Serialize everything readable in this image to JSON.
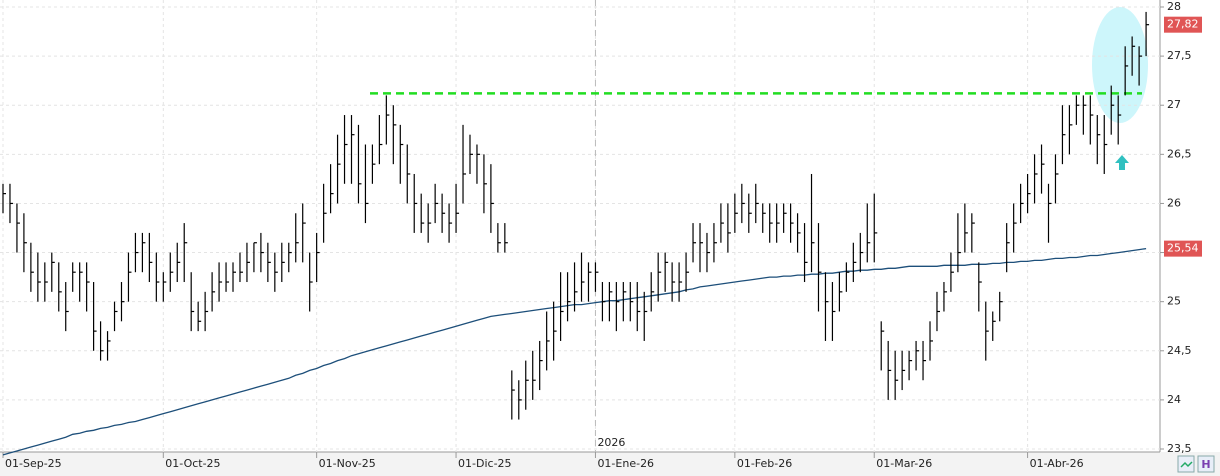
{
  "chart_data": {
    "type": "ohlc",
    "categories": [
      "01-Sep-25",
      null,
      null,
      null,
      null,
      null,
      null,
      null,
      null,
      null,
      null,
      null,
      null,
      null,
      null,
      null,
      null,
      null,
      null,
      null,
      null,
      null,
      null,
      "01-Oct-25",
      null,
      null,
      null,
      null,
      null,
      null,
      null,
      null,
      null,
      null,
      null,
      null,
      null,
      null,
      null,
      null,
      null,
      null,
      null,
      null,
      null,
      "01-Nov-25",
      null,
      null,
      null,
      null,
      null,
      null,
      null,
      null,
      null,
      null,
      null,
      null,
      null,
      null,
      null,
      null,
      null,
      null,
      null,
      "01-Dic-25",
      null,
      null,
      null,
      null,
      null,
      null,
      null,
      null,
      null,
      null,
      null,
      null,
      null,
      null,
      null,
      null,
      null,
      null,
      null,
      "01-Ene-26",
      null,
      null,
      null,
      null,
      null,
      null,
      null,
      null,
      null,
      null,
      null,
      null,
      null,
      null,
      null,
      null,
      null,
      null,
      null,
      "01-Feb-26",
      null,
      null,
      null,
      null,
      null,
      null,
      null,
      null,
      null,
      null,
      null,
      null,
      null,
      null,
      null,
      null,
      null,
      null,
      null,
      "01-Mar-26",
      null,
      null,
      null,
      null,
      null,
      null,
      null,
      null,
      null,
      null,
      null,
      null,
      null,
      null,
      null,
      null,
      null,
      null,
      null,
      null,
      null,
      "01-Abr-26",
      null,
      null,
      null,
      null,
      null,
      null,
      null,
      null,
      null,
      null,
      null,
      null,
      null,
      null,
      null,
      null,
      null
    ],
    "ohlc": {
      "color": "#000000",
      "high": [
        26.2,
        26.2,
        26.0,
        25.9,
        25.6,
        25.5,
        25.4,
        25.5,
        25.4,
        25.2,
        25.4,
        25.4,
        25.4,
        25.2,
        24.8,
        24.7,
        25.0,
        25.2,
        25.5,
        25.7,
        25.7,
        25.7,
        25.5,
        25.3,
        25.5,
        25.6,
        25.8,
        25.3,
        25.0,
        25.1,
        25.3,
        25.4,
        25.4,
        25.4,
        25.5,
        25.6,
        25.6,
        25.7,
        25.6,
        25.5,
        25.6,
        25.6,
        25.9,
        26.0,
        25.5,
        25.7,
        26.2,
        26.4,
        26.7,
        26.9,
        26.9,
        26.8,
        26.6,
        26.6,
        26.9,
        27.1,
        27.0,
        26.8,
        26.6,
        26.3,
        26.1,
        26.0,
        26.2,
        26.1,
        26.0,
        26.2,
        26.8,
        26.7,
        26.6,
        26.5,
        26.4,
        25.8,
        25.8,
        24.3,
        24.2,
        24.4,
        24.5,
        24.6,
        24.9,
        25.0,
        25.3,
        25.3,
        25.4,
        25.5,
        25.4,
        25.4,
        25.2,
        25.2,
        25.2,
        25.2,
        25.2,
        25.2,
        25.1,
        25.3,
        25.5,
        25.5,
        25.4,
        25.4,
        25.5,
        25.8,
        25.8,
        25.7,
        25.8,
        26.0,
        26.0,
        26.1,
        26.2,
        26.1,
        26.2,
        26.0,
        26.0,
        26.0,
        26.0,
        26.0,
        25.9,
        25.8,
        26.3,
        25.8,
        25.3,
        25.2,
        25.3,
        25.4,
        25.6,
        25.7,
        26.0,
        26.1,
        24.8,
        24.6,
        24.5,
        24.5,
        24.5,
        24.6,
        24.6,
        24.8,
        25.1,
        25.2,
        25.5,
        25.9,
        26.0,
        25.9,
        25.4,
        25.0,
        24.9,
        25.1,
        25.8,
        26.0,
        26.2,
        26.3,
        26.5,
        26.6,
        26.2,
        26.5,
        27.0,
        27.0,
        27.1,
        27.1,
        27.1,
        26.9,
        26.9,
        27.2,
        27.1,
        27.6,
        27.7,
        27.6,
        27.95
      ],
      "low": [
        25.9,
        25.8,
        25.5,
        25.3,
        25.1,
        25.0,
        25.0,
        25.1,
        24.9,
        24.7,
        25.1,
        25.0,
        24.9,
        24.5,
        24.4,
        24.4,
        24.7,
        24.8,
        25.0,
        25.3,
        25.3,
        25.2,
        25.0,
        25.0,
        25.1,
        25.2,
        25.2,
        24.7,
        24.7,
        24.7,
        24.9,
        25.0,
        25.1,
        25.1,
        25.2,
        25.2,
        25.3,
        25.3,
        25.2,
        25.1,
        25.2,
        25.3,
        25.4,
        25.4,
        24.9,
        25.2,
        25.6,
        25.9,
        26.0,
        26.2,
        26.2,
        26.0,
        25.8,
        26.2,
        26.4,
        26.6,
        26.4,
        26.2,
        26.0,
        25.7,
        25.7,
        25.6,
        25.8,
        25.7,
        25.6,
        25.7,
        26.0,
        26.3,
        26.2,
        25.9,
        25.7,
        25.5,
        25.5,
        23.8,
        23.8,
        23.9,
        24.0,
        24.1,
        24.3,
        24.4,
        24.6,
        24.8,
        24.9,
        25.0,
        25.0,
        25.1,
        24.8,
        24.8,
        24.7,
        24.8,
        24.8,
        24.7,
        24.6,
        24.9,
        25.0,
        25.1,
        25.0,
        25.0,
        25.1,
        25.4,
        25.3,
        25.3,
        25.4,
        25.6,
        25.5,
        25.7,
        25.8,
        25.7,
        25.8,
        25.7,
        25.6,
        25.6,
        25.7,
        25.6,
        25.5,
        25.2,
        25.3,
        24.9,
        24.6,
        24.6,
        24.9,
        25.1,
        25.2,
        25.3,
        25.4,
        25.4,
        24.3,
        24.0,
        24.0,
        24.1,
        24.2,
        24.3,
        24.2,
        24.4,
        24.7,
        24.9,
        25.1,
        25.3,
        25.5,
        25.5,
        24.9,
        24.4,
        24.6,
        24.8,
        25.3,
        25.5,
        25.8,
        25.9,
        26.0,
        26.1,
        25.6,
        26.0,
        26.4,
        26.5,
        26.8,
        26.7,
        26.6,
        26.4,
        26.3,
        26.7,
        26.6,
        27.1,
        27.3,
        27.2,
        27.5
      ],
      "close": [
        26.1,
        26.0,
        25.8,
        25.6,
        25.3,
        25.2,
        25.2,
        25.4,
        25.1,
        24.9,
        25.3,
        25.3,
        25.2,
        24.7,
        24.5,
        24.6,
        24.9,
        25.0,
        25.3,
        25.5,
        25.6,
        25.4,
        25.2,
        25.2,
        25.3,
        25.4,
        25.6,
        24.9,
        24.8,
        24.9,
        25.1,
        25.2,
        25.2,
        25.3,
        25.3,
        25.4,
        25.6,
        25.5,
        25.4,
        25.3,
        25.4,
        25.5,
        25.6,
        25.8,
        25.2,
        25.5,
        25.9,
        26.1,
        26.4,
        26.6,
        26.7,
        26.2,
        26.0,
        26.4,
        26.6,
        26.9,
        26.8,
        26.6,
        26.3,
        26.0,
        25.8,
        25.8,
        26.0,
        25.9,
        25.8,
        25.9,
        26.3,
        26.5,
        26.5,
        26.2,
        26.0,
        25.6,
        25.6,
        24.1,
        24.0,
        24.2,
        24.2,
        24.4,
        24.6,
        24.7,
        24.9,
        25.0,
        25.1,
        25.2,
        25.3,
        25.3,
        25.0,
        25.1,
        25.0,
        25.1,
        25.0,
        24.9,
        24.9,
        25.1,
        25.3,
        25.4,
        25.2,
        25.2,
        25.3,
        25.6,
        25.6,
        25.5,
        25.6,
        25.8,
        25.7,
        25.9,
        26.0,
        25.9,
        26.0,
        25.9,
        25.8,
        25.8,
        25.9,
        25.8,
        25.7,
        25.4,
        25.6,
        25.3,
        25.0,
        24.9,
        25.1,
        25.3,
        25.4,
        25.5,
        25.6,
        25.7,
        24.7,
        24.3,
        24.2,
        24.3,
        24.4,
        24.5,
        24.4,
        24.6,
        24.9,
        25.1,
        25.3,
        25.5,
        25.7,
        25.8,
        25.2,
        24.7,
        24.8,
        25.0,
        25.6,
        25.8,
        26.0,
        26.1,
        26.3,
        26.4,
        26.0,
        26.3,
        26.7,
        26.8,
        27.0,
        27.0,
        26.9,
        26.7,
        26.6,
        27.0,
        26.9,
        27.4,
        27.6,
        27.5,
        27.82
      ]
    },
    "moving_average": {
      "color": "#1d4f7a",
      "values": [
        23.44,
        23.46,
        23.48,
        23.5,
        23.52,
        23.54,
        23.56,
        23.58,
        23.6,
        23.62,
        23.65,
        23.66,
        23.68,
        23.69,
        23.71,
        23.72,
        23.74,
        23.75,
        23.77,
        23.78,
        23.8,
        23.82,
        23.84,
        23.86,
        23.88,
        23.9,
        23.92,
        23.94,
        23.96,
        23.98,
        24.0,
        24.02,
        24.04,
        24.06,
        24.08,
        24.1,
        24.12,
        24.14,
        24.16,
        24.18,
        24.2,
        24.22,
        24.25,
        24.27,
        24.3,
        24.32,
        24.35,
        24.37,
        24.4,
        24.42,
        24.45,
        24.47,
        24.49,
        24.51,
        24.53,
        24.55,
        24.57,
        24.59,
        24.61,
        24.63,
        24.65,
        24.67,
        24.69,
        24.71,
        24.73,
        24.75,
        24.77,
        24.79,
        24.81,
        24.83,
        24.85,
        24.86,
        24.87,
        24.88,
        24.89,
        24.9,
        24.91,
        24.92,
        24.93,
        24.94,
        24.95,
        24.96,
        24.97,
        24.97,
        24.98,
        24.99,
        25.0,
        25.01,
        25.01,
        25.02,
        25.03,
        25.04,
        25.05,
        25.06,
        25.07,
        25.08,
        25.09,
        25.1,
        25.12,
        25.13,
        25.15,
        25.16,
        25.17,
        25.18,
        25.19,
        25.2,
        25.21,
        25.22,
        25.23,
        25.24,
        25.25,
        25.25,
        25.26,
        25.26,
        25.27,
        25.27,
        25.28,
        25.28,
        25.29,
        25.29,
        25.3,
        25.31,
        25.31,
        25.32,
        25.32,
        25.33,
        25.33,
        25.34,
        25.34,
        25.35,
        25.36,
        25.36,
        25.36,
        25.36,
        25.36,
        25.37,
        25.37,
        25.37,
        25.37,
        25.38,
        25.38,
        25.38,
        25.39,
        25.39,
        25.4,
        25.4,
        25.41,
        25.41,
        25.42,
        25.42,
        25.43,
        25.44,
        25.44,
        25.45,
        25.45,
        25.46,
        25.47,
        25.47,
        25.48,
        25.49,
        25.5,
        25.51,
        25.52,
        25.53,
        25.54
      ]
    },
    "level": {
      "value": 27.12,
      "color": "#22dd22"
    },
    "last_label": {
      "value": 27.82,
      "label": "27,82",
      "color": "#e05555"
    },
    "ma_label": {
      "value": 25.54,
      "label": "25,54",
      "color": "#e05555"
    },
    "annotation": "2026",
    "ylim": [
      23.5,
      28
    ],
    "yticks": [
      {
        "value": 23.5,
        "label": "23,5"
      },
      24,
      {
        "value": 24.5,
        "label": "24,5"
      },
      25,
      {
        "value": 25.5,
        "label": "25,5"
      },
      26,
      {
        "value": 26.5,
        "label": "26,5"
      },
      27,
      {
        "value": 27.5,
        "label": "27,5"
      },
      28
    ],
    "grid": true
  }
}
